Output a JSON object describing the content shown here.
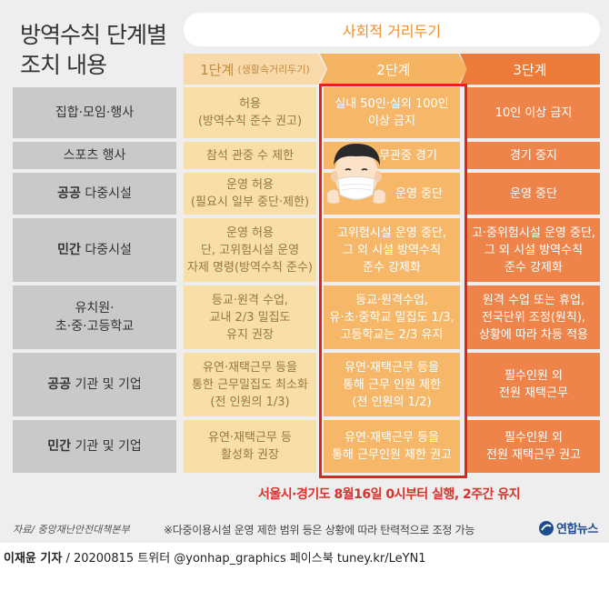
{
  "title": {
    "line1": "방역수칙 단계별",
    "line2": "조치 내용"
  },
  "banner": "사회적 거리두기",
  "stages": {
    "s1_label": "1단계",
    "s1_sub": "(생활속거리두기)",
    "s2_label": "2단계",
    "s3_label": "3단계"
  },
  "rows": [
    {
      "label": [
        "집합·모임·행사"
      ],
      "s1": [
        "허용",
        "(방역수칙 준수 권고)"
      ],
      "s2": [
        "실내 50인·실외 100인",
        "이상 금지"
      ],
      "s3": [
        "10인 이상 금지"
      ]
    },
    {
      "label": [
        "스포츠 행사"
      ],
      "s1": [
        "참석 관중 수 제한"
      ],
      "s2": [
        "무관중 경기"
      ],
      "s3": [
        "경기 중지"
      ]
    },
    {
      "label_bold": "공공",
      "label_rest": " 다중시설",
      "s1": [
        "운영 허용",
        "(필요시 일부 중단·제한)"
      ],
      "s2": [
        "운영 중단"
      ],
      "s3": [
        "운영 중단"
      ]
    },
    {
      "label_bold": "민간",
      "label_rest": " 다중시설",
      "s1": [
        "운영 허용",
        "단, 고위험시설 운영",
        "자제 명령(방역수칙 준수)"
      ],
      "s2": [
        "고위험시설 운영 중단,",
        "그 외 시설 방역수칙",
        "준수 강제화"
      ],
      "s3": [
        "고·중위험시설 운영 중단,",
        "그 외 시설 방역수칙",
        "준수 강제화"
      ]
    },
    {
      "label": [
        "유치원·",
        "초·중·고등학교"
      ],
      "s1": [
        "등교·원격 수업,",
        "교내 2/3 밀집도",
        "유지 권장"
      ],
      "s2": [
        "등교·원격수업,",
        "유·초·중학교 밀집도 1/3,",
        "고등학교는 2/3 유지"
      ],
      "s3": [
        "원격 수업 또는 휴업,",
        "전국단위 조정(원칙),",
        "상황에 따라 차등 적용"
      ]
    },
    {
      "label_bold": "공공",
      "label_rest": " 기관 및 기업",
      "s1": [
        "유연·재택근무 등을",
        "통한 근무밀집도 최소화",
        "(전 인원의 1/3)"
      ],
      "s2": [
        "유연·재택근무 등을",
        "통해 근무 인원 제한",
        "(전 인원의 1/2)"
      ],
      "s3": [
        "필수인원 외",
        "전원 재택근무"
      ]
    },
    {
      "label_bold": "민간",
      "label_rest": " 기관 및 기업",
      "s1": [
        "유연·재택근무 등",
        "활성화 권장"
      ],
      "s2": [
        "유연·재택근무 등을",
        "통해 근무인원 제한 권고"
      ],
      "s3": [
        "필수인원 외",
        "전원 재택근무 권고"
      ]
    }
  ],
  "effective": "서울시·경기도 8월16일 0시부터 실행, 2주간 유지",
  "source": "자료/ 중앙재난안전대책본부",
  "note": "※다중이용시설 운영 제한 범위 등은 상황에 따라 탄력적으로 조정 가능",
  "logo_text": "연합뉴스",
  "credit": {
    "reporter": "이재윤 기자",
    "rest": " / 20200815   트위터 @yonhap_graphics   페이스북 tuney.kr/LeYN1"
  },
  "colors": {
    "stage1": "#f8dfa8",
    "stage2": "#f6b868",
    "stage3": "#ee844a",
    "highlight": "#e02323",
    "label_bg": "#c9c9c9"
  }
}
